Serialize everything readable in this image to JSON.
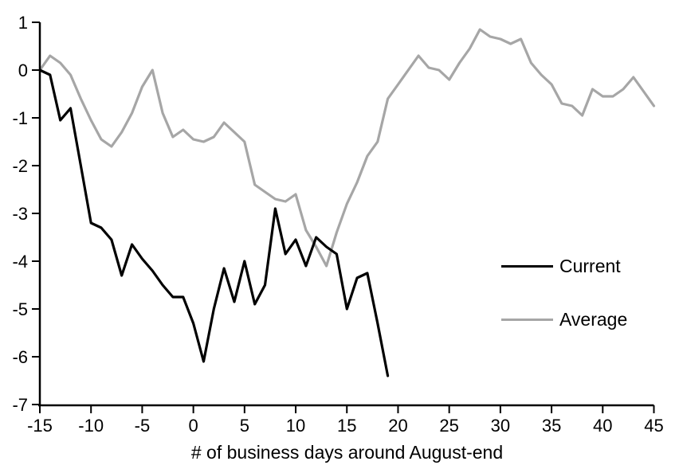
{
  "chart_data": {
    "type": "line",
    "title": "",
    "xlabel": "# of business days around August-end",
    "ylabel": "",
    "xlim": [
      -15,
      45
    ],
    "ylim": [
      -7,
      1
    ],
    "x_ticks": [
      -15,
      -10,
      -5,
      0,
      5,
      10,
      15,
      20,
      25,
      30,
      35,
      40,
      45
    ],
    "y_ticks": [
      1,
      0,
      -1,
      -2,
      -3,
      -4,
      -5,
      -6,
      -7
    ],
    "grid": false,
    "legend_position": "middle-right",
    "x": [
      -15,
      -14,
      -13,
      -12,
      -11,
      -10,
      -9,
      -8,
      -7,
      -6,
      -5,
      -4,
      -3,
      -2,
      -1,
      0,
      1,
      2,
      3,
      4,
      5,
      6,
      7,
      8,
      9,
      10,
      11,
      12,
      13,
      14,
      15,
      16,
      17,
      18,
      19,
      20,
      21,
      22,
      23,
      24,
      25,
      26,
      27,
      28,
      29,
      30,
      31,
      32,
      33,
      34,
      35,
      36,
      37,
      38,
      39,
      40,
      41,
      42,
      43,
      44,
      45
    ],
    "series": [
      {
        "name": "Current",
        "color": "#000000",
        "values": [
          0.0,
          -0.1,
          -1.05,
          -0.8,
          -2.0,
          -3.2,
          -3.3,
          -3.55,
          -4.3,
          -3.65,
          -3.95,
          -4.2,
          -4.5,
          -4.75,
          -4.75,
          -5.3,
          -6.1,
          -5.0,
          -4.15,
          -4.85,
          -4.0,
          -4.9,
          -4.5,
          -2.9,
          -3.85,
          -3.55,
          -4.1,
          -3.5,
          -3.7,
          -3.85,
          -5.0,
          -4.35,
          -4.25,
          -5.3,
          -6.4,
          null,
          null,
          null,
          null,
          null,
          null,
          null,
          null,
          null,
          null,
          null,
          null,
          null,
          null,
          null,
          null,
          null,
          null,
          null,
          null,
          null,
          null,
          null,
          null,
          null,
          null
        ]
      },
      {
        "name": "Average",
        "color": "#A6A6A6",
        "values": [
          0.0,
          0.3,
          0.15,
          -0.1,
          -0.6,
          -1.05,
          -1.45,
          -1.6,
          -1.3,
          -0.9,
          -0.35,
          0.0,
          -0.9,
          -1.4,
          -1.25,
          -1.45,
          -1.5,
          -1.4,
          -1.1,
          -1.3,
          -1.5,
          -2.4,
          -2.55,
          -2.7,
          -2.75,
          -2.6,
          -3.35,
          -3.7,
          -4.1,
          -3.4,
          -2.8,
          -2.35,
          -1.8,
          -1.5,
          -0.6,
          -0.3,
          0.0,
          0.3,
          0.05,
          0.0,
          -0.2,
          0.15,
          0.45,
          0.85,
          0.7,
          0.65,
          0.55,
          0.65,
          0.15,
          -0.1,
          -0.3,
          -0.7,
          -0.75,
          -0.95,
          -0.4,
          -0.55,
          -0.55,
          -0.4,
          -0.15,
          -0.45,
          -0.75
        ]
      }
    ]
  },
  "style": {
    "axis_color": "#000000",
    "background": "#ffffff",
    "line_width": 3.2
  }
}
